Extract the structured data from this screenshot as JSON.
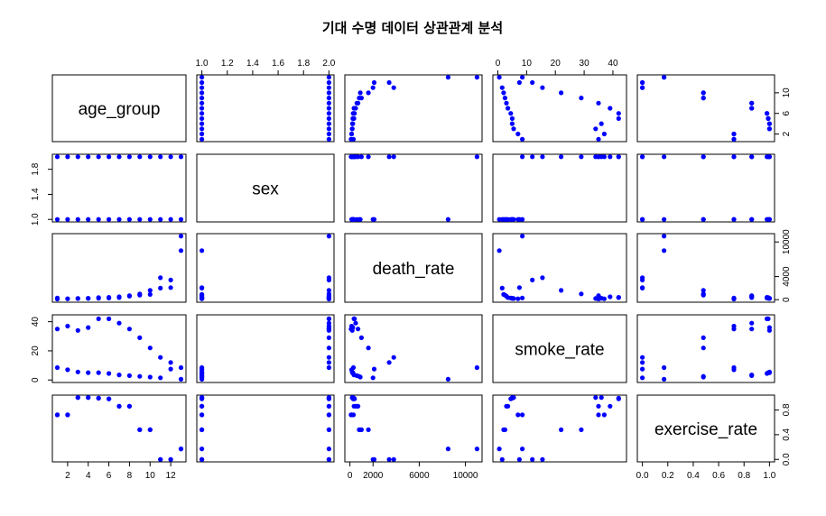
{
  "chart_data": {
    "type": "scatter",
    "title": "기대 수명 데이터 상관관계 분석",
    "variables": [
      "age_group",
      "sex",
      "death_rate",
      "smoke_rate",
      "exercise_rate"
    ],
    "point_color": "#0000ff",
    "ranges": {
      "age_group": [
        1,
        13
      ],
      "sex": [
        1,
        2
      ],
      "death_rate": [
        0,
        11000
      ],
      "smoke_rate": [
        0,
        43
      ],
      "exercise_rate": [
        0,
        1
      ]
    },
    "ticks": {
      "age_group": [
        "2",
        "4",
        "6",
        "8",
        "10",
        "12"
      ],
      "sex": [
        "1.0",
        "1.2",
        "1.4",
        "1.6",
        "1.8",
        "2.0"
      ],
      "death_rate": [
        "0",
        "2000",
        "6000",
        "10000"
      ],
      "smoke_rate": [
        "0",
        "10",
        "20",
        "30",
        "40"
      ],
      "exercise_rate": [
        "0.0",
        "0.2",
        "0.4",
        "0.6",
        "0.8",
        "1.0"
      ]
    },
    "tick_values": {
      "age_group": [
        2,
        4,
        6,
        8,
        10,
        12
      ],
      "sex": [
        1.0,
        1.2,
        1.4,
        1.6,
        1.8,
        2.0
      ],
      "death_rate": [
        0,
        2000,
        6000,
        10000
      ],
      "smoke_rate": [
        0,
        10,
        20,
        30,
        40
      ],
      "exercise_rate": [
        0.0,
        0.2,
        0.4,
        0.6,
        0.8,
        1.0
      ]
    },
    "left_ticks": {
      "sex": [
        "1.0",
        "1.4",
        "1.8"
      ],
      "smoke_rate": [
        "0",
        "20",
        "40"
      ]
    },
    "left_tick_values": {
      "sex": [
        1.0,
        1.4,
        1.8
      ],
      "smoke_rate": [
        0,
        20,
        40
      ]
    },
    "right_ticks": {
      "age_group": [
        "2",
        "6",
        "10"
      ],
      "death_rate": [
        "0",
        "4000",
        "10000"
      ],
      "exercise_rate": [
        "0.0",
        "0.4",
        "0.8"
      ]
    },
    "right_tick_values": {
      "age_group": [
        2,
        6,
        10
      ],
      "death_rate": [
        0,
        4000,
        10000
      ],
      "exercise_rate": [
        0.0,
        0.4,
        0.8
      ]
    },
    "observations": [
      {
        "age_group": 1,
        "sex": 1,
        "death_rate": 300,
        "smoke_rate": 8.5,
        "exercise_rate": 0.72
      },
      {
        "age_group": 2,
        "sex": 1,
        "death_rate": 150,
        "smoke_rate": 7,
        "exercise_rate": 0.72
      },
      {
        "age_group": 3,
        "sex": 1,
        "death_rate": 200,
        "smoke_rate": 5.5,
        "exercise_rate": 1.0
      },
      {
        "age_group": 4,
        "sex": 1,
        "death_rate": 220,
        "smoke_rate": 5,
        "exercise_rate": 1.0
      },
      {
        "age_group": 5,
        "sex": 1,
        "death_rate": 250,
        "smoke_rate": 5,
        "exercise_rate": 0.99
      },
      {
        "age_group": 6,
        "sex": 1,
        "death_rate": 280,
        "smoke_rate": 4.5,
        "exercise_rate": 0.98
      },
      {
        "age_group": 7,
        "sex": 1,
        "death_rate": 350,
        "smoke_rate": 3.5,
        "exercise_rate": 0.86
      },
      {
        "age_group": 8,
        "sex": 1,
        "death_rate": 600,
        "smoke_rate": 3,
        "exercise_rate": 0.86
      },
      {
        "age_group": 9,
        "sex": 1,
        "death_rate": 800,
        "smoke_rate": 2.5,
        "exercise_rate": 0.48
      },
      {
        "age_group": 10,
        "sex": 1,
        "death_rate": 900,
        "smoke_rate": 2,
        "exercise_rate": 0.48
      },
      {
        "age_group": 11,
        "sex": 1,
        "death_rate": 2000,
        "smoke_rate": 1.5,
        "exercise_rate": 0.0
      },
      {
        "age_group": 12,
        "sex": 1,
        "death_rate": 2100,
        "smoke_rate": 7.5,
        "exercise_rate": 0.0
      },
      {
        "age_group": 13,
        "sex": 1,
        "death_rate": 8500,
        "smoke_rate": 0.5,
        "exercise_rate": 0.17
      },
      {
        "age_group": 1,
        "sex": 2,
        "death_rate": 100,
        "smoke_rate": 35,
        "exercise_rate": 0.72
      },
      {
        "age_group": 2,
        "sex": 2,
        "death_rate": 150,
        "smoke_rate": 37,
        "exercise_rate": 0.72
      },
      {
        "age_group": 3,
        "sex": 2,
        "death_rate": 200,
        "smoke_rate": 34,
        "exercise_rate": 1.0
      },
      {
        "age_group": 4,
        "sex": 2,
        "death_rate": 250,
        "smoke_rate": 36,
        "exercise_rate": 1.0
      },
      {
        "age_group": 5,
        "sex": 2,
        "death_rate": 350,
        "smoke_rate": 42,
        "exercise_rate": 0.99
      },
      {
        "age_group": 6,
        "sex": 2,
        "death_rate": 400,
        "smoke_rate": 42,
        "exercise_rate": 0.98
      },
      {
        "age_group": 7,
        "sex": 2,
        "death_rate": 500,
        "smoke_rate": 39,
        "exercise_rate": 0.86
      },
      {
        "age_group": 8,
        "sex": 2,
        "death_rate": 700,
        "smoke_rate": 35,
        "exercise_rate": 0.86
      },
      {
        "age_group": 9,
        "sex": 2,
        "death_rate": 1000,
        "smoke_rate": 29,
        "exercise_rate": 0.48
      },
      {
        "age_group": 10,
        "sex": 2,
        "death_rate": 1600,
        "smoke_rate": 22,
        "exercise_rate": 0.48
      },
      {
        "age_group": 11,
        "sex": 2,
        "death_rate": 3800,
        "smoke_rate": 15.5,
        "exercise_rate": 0.0
      },
      {
        "age_group": 12,
        "sex": 2,
        "death_rate": 3400,
        "smoke_rate": 12,
        "exercise_rate": 0.0
      },
      {
        "age_group": 13,
        "sex": 2,
        "death_rate": 11000,
        "smoke_rate": 8.5,
        "exercise_rate": 0.17
      }
    ]
  }
}
